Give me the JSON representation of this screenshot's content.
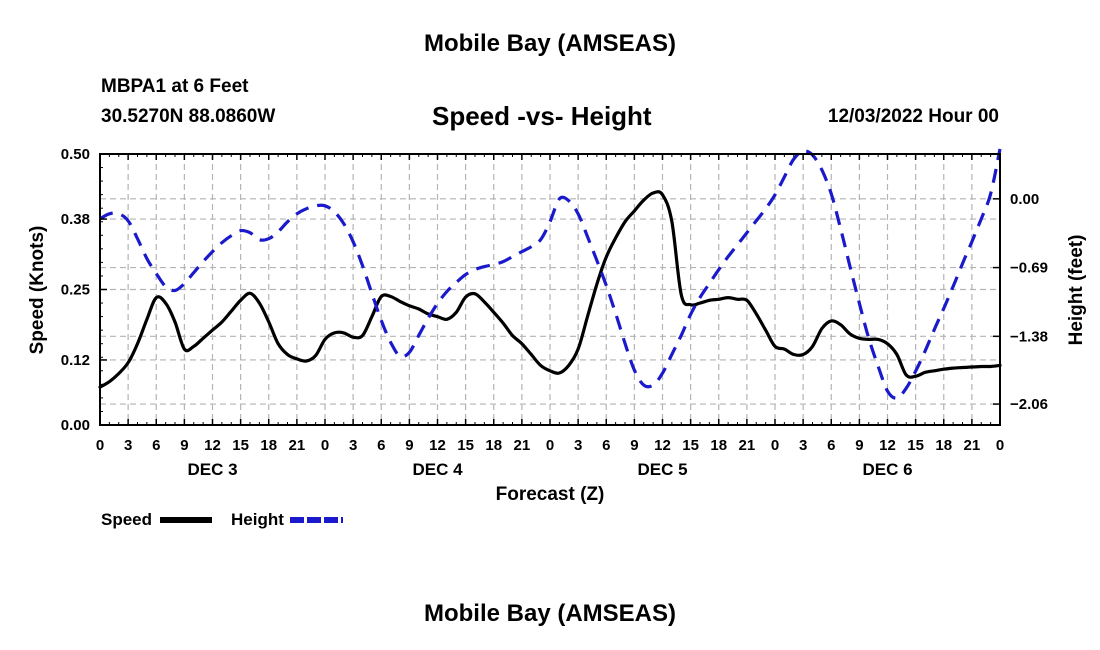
{
  "page": {
    "title": "Mobile Bay (AMSEAS)",
    "bottom_title": "Mobile Bay (AMSEAS)",
    "station": "MBPA1 at 6 Feet",
    "coords": "30.5270N  88.0860W",
    "chart_title": "Speed -vs- Height",
    "run_time": "12/03/2022 Hour 00"
  },
  "chart_data": {
    "type": "line",
    "title": "Speed -vs- Height",
    "xlabel": "Forecast (Z)",
    "ylabel": "Speed (Knots)",
    "y2label": "Height (feet)",
    "grid": true,
    "x_range_hours": [
      0,
      96
    ],
    "x_tick_labels": [
      "0",
      "3",
      "6",
      "9",
      "12",
      "15",
      "18",
      "21",
      "0",
      "3",
      "6",
      "9",
      "12",
      "15",
      "18",
      "21",
      "0",
      "3",
      "6",
      "9",
      "12",
      "15",
      "18",
      "21",
      "0",
      "3",
      "6",
      "9",
      "12",
      "15",
      "18",
      "21",
      "0"
    ],
    "day_labels": [
      "DEC 3",
      "DEC 4",
      "DEC 5",
      "DEC 6"
    ],
    "y_range": [
      0,
      0.5
    ],
    "y_ticks": [
      "0.00",
      "0.12",
      "0.25",
      "0.38",
      "0.50"
    ],
    "y2_range": [
      -2.27,
      0.45
    ],
    "y2_ticks": [
      "0.00",
      "-0.69",
      "-1.38",
      "-2.06"
    ],
    "legend": [
      {
        "name": "Speed",
        "color": "#000000",
        "dash": "solid"
      },
      {
        "name": "Height",
        "color": "#1a1acc",
        "dash": "dashed"
      }
    ],
    "series": [
      {
        "name": "Speed",
        "axis": "left",
        "color": "#000000",
        "x": [
          0,
          1,
          2,
          3,
          4,
          5,
          6,
          7,
          8,
          9,
          10,
          11,
          12,
          13,
          14,
          15,
          16,
          17,
          18,
          19,
          20,
          21,
          22,
          23,
          24,
          25,
          26,
          27,
          28,
          29,
          30,
          31,
          32,
          33,
          34,
          35,
          36,
          37,
          38,
          39,
          40,
          41,
          42,
          43,
          44,
          45,
          46,
          47,
          48,
          49,
          50,
          51,
          52,
          53,
          54,
          55,
          56,
          57,
          58,
          59,
          60,
          61,
          62,
          63,
          64,
          65,
          66,
          67,
          68,
          69,
          70,
          71,
          72,
          73,
          74,
          75,
          76,
          77,
          78,
          79,
          80,
          81,
          82,
          83,
          84,
          85,
          86,
          87,
          88,
          89,
          90,
          91,
          92,
          93,
          94,
          95,
          96
        ],
        "values": [
          0.07,
          0.08,
          0.095,
          0.115,
          0.15,
          0.195,
          0.235,
          0.225,
          0.19,
          0.14,
          0.145,
          0.16,
          0.175,
          0.19,
          0.21,
          0.23,
          0.243,
          0.225,
          0.19,
          0.15,
          0.13,
          0.122,
          0.118,
          0.128,
          0.158,
          0.17,
          0.17,
          0.162,
          0.165,
          0.2,
          0.237,
          0.237,
          0.228,
          0.22,
          0.214,
          0.205,
          0.2,
          0.195,
          0.208,
          0.236,
          0.242,
          0.227,
          0.208,
          0.188,
          0.165,
          0.15,
          0.13,
          0.11,
          0.1,
          0.096,
          0.11,
          0.14,
          0.2,
          0.26,
          0.31,
          0.345,
          0.375,
          0.395,
          0.415,
          0.428,
          0.425,
          0.375,
          0.24,
          0.222,
          0.225,
          0.23,
          0.232,
          0.235,
          0.232,
          0.23,
          0.205,
          0.175,
          0.145,
          0.14,
          0.13,
          0.13,
          0.145,
          0.178,
          0.192,
          0.185,
          0.168,
          0.16,
          0.158,
          0.158,
          0.15,
          0.13,
          0.092,
          0.09,
          0.097,
          0.1,
          0.103,
          0.105,
          0.106,
          0.107,
          0.108,
          0.108,
          0.11
        ]
      },
      {
        "name": "Height",
        "axis": "right",
        "color": "#1a1acc",
        "x": [
          0,
          1,
          2,
          3,
          4,
          5,
          6,
          7,
          8,
          9,
          10,
          11,
          12,
          13,
          14,
          15,
          16,
          17,
          18,
          19,
          20,
          21,
          22,
          23,
          24,
          25,
          26,
          27,
          28,
          29,
          30,
          31,
          32,
          33,
          34,
          35,
          36,
          37,
          38,
          39,
          40,
          41,
          42,
          43,
          44,
          45,
          46,
          47,
          48,
          49,
          50,
          51,
          52,
          53,
          54,
          55,
          56,
          57,
          58,
          59,
          60,
          61,
          62,
          63,
          64,
          65,
          66,
          67,
          68,
          69,
          70,
          71,
          72,
          73,
          74,
          75,
          76,
          77,
          78,
          79,
          80,
          81,
          82,
          83,
          84,
          85,
          86,
          87,
          88,
          89,
          90,
          91,
          92,
          93,
          94,
          95,
          96
        ],
        "values": [
          -0.2,
          -0.15,
          -0.15,
          -0.22,
          -0.4,
          -0.6,
          -0.75,
          -0.88,
          -0.92,
          -0.85,
          -0.74,
          -0.63,
          -0.53,
          -0.44,
          -0.37,
          -0.32,
          -0.34,
          -0.41,
          -0.4,
          -0.33,
          -0.23,
          -0.15,
          -0.1,
          -0.07,
          -0.07,
          -0.13,
          -0.25,
          -0.43,
          -0.67,
          -0.95,
          -1.22,
          -1.44,
          -1.58,
          -1.54,
          -1.37,
          -1.2,
          -1.05,
          -0.93,
          -0.84,
          -0.76,
          -0.71,
          -0.68,
          -0.66,
          -0.63,
          -0.58,
          -0.53,
          -0.48,
          -0.41,
          -0.23,
          0.0,
          -0.02,
          -0.15,
          -0.38,
          -0.62,
          -0.87,
          -1.15,
          -1.45,
          -1.72,
          -1.87,
          -1.87,
          -1.75,
          -1.56,
          -1.37,
          -1.16,
          -0.99,
          -0.85,
          -0.71,
          -0.58,
          -0.46,
          -0.34,
          -0.22,
          -0.1,
          0.04,
          0.22,
          0.4,
          0.48,
          0.44,
          0.29,
          0.05,
          -0.3,
          -0.68,
          -1.05,
          -1.4,
          -1.68,
          -1.93,
          -2.0,
          -1.9,
          -1.73,
          -1.53,
          -1.31,
          -1.1,
          -0.88,
          -0.65,
          -0.43,
          -0.2,
          0.05,
          0.5
        ]
      }
    ]
  }
}
